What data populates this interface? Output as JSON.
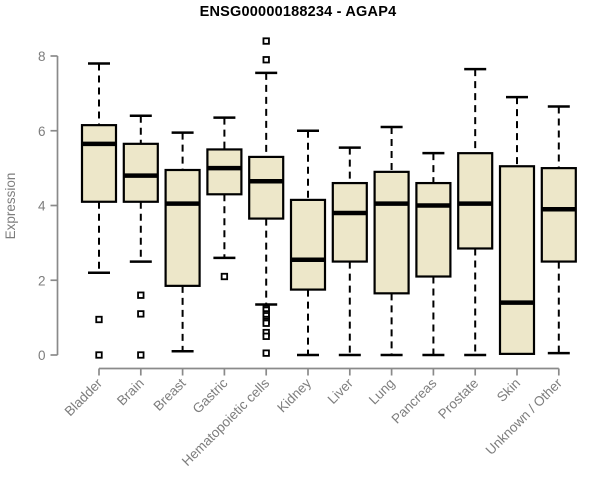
{
  "chart_data": {
    "type": "boxplot",
    "title": "ENSG00000188234 - AGAP4",
    "ylabel": "Expression",
    "xlabel": "",
    "ylim": [
      0,
      8
    ],
    "yticks": [
      0,
      2,
      4,
      6,
      8
    ],
    "grid": false,
    "legend": "none",
    "categories": [
      "Bladder",
      "Brain",
      "Breast",
      "Gastric",
      "Hematopoietic cells",
      "Kidney",
      "Liver",
      "Lung",
      "Pancreas",
      "Prostate",
      "Skin",
      "Unknown / Other"
    ],
    "boxes": [
      {
        "category": "Bladder",
        "whisker_low": 2.2,
        "q1": 4.1,
        "median": 5.65,
        "q3": 6.15,
        "whisker_high": 7.8,
        "outliers": [
          0.95,
          0.0
        ]
      },
      {
        "category": "Brain",
        "whisker_low": 2.5,
        "q1": 4.1,
        "median": 4.8,
        "q3": 5.65,
        "whisker_high": 6.4,
        "outliers": [
          1.6,
          1.1,
          0.0
        ]
      },
      {
        "category": "Breast",
        "whisker_low": 0.1,
        "q1": 1.85,
        "median": 4.05,
        "q3": 4.95,
        "whisker_high": 5.95,
        "outliers": []
      },
      {
        "category": "Gastric",
        "whisker_low": 2.6,
        "q1": 4.3,
        "median": 5.0,
        "q3": 5.5,
        "whisker_high": 6.35,
        "outliers": [
          2.1
        ]
      },
      {
        "category": "Hematopoietic cells",
        "whisker_low": 1.35,
        "q1": 3.65,
        "median": 4.65,
        "q3": 5.3,
        "whisker_high": 7.55,
        "outliers": [
          8.4,
          7.9,
          1.25,
          1.2,
          1.1,
          1.05,
          0.95,
          0.9,
          0.85,
          0.6,
          0.5,
          0.05
        ]
      },
      {
        "category": "Kidney",
        "whisker_low": 0.0,
        "q1": 1.75,
        "median": 2.55,
        "q3": 4.15,
        "whisker_high": 6.0,
        "outliers": []
      },
      {
        "category": "Liver",
        "whisker_low": 0.0,
        "q1": 2.5,
        "median": 3.8,
        "q3": 4.6,
        "whisker_high": 5.55,
        "outliers": []
      },
      {
        "category": "Lung",
        "whisker_low": 0.0,
        "q1": 1.65,
        "median": 4.05,
        "q3": 4.9,
        "whisker_high": 6.1,
        "outliers": []
      },
      {
        "category": "Pancreas",
        "whisker_low": 0.0,
        "q1": 2.1,
        "median": 4.0,
        "q3": 4.6,
        "whisker_high": 5.4,
        "outliers": []
      },
      {
        "category": "Prostate",
        "whisker_low": 0.0,
        "q1": 2.85,
        "median": 4.05,
        "q3": 5.4,
        "whisker_high": 7.65,
        "outliers": []
      },
      {
        "category": "Skin",
        "whisker_low": 0.03,
        "q1": 0.03,
        "median": 1.4,
        "q3": 5.05,
        "whisker_high": 6.9,
        "outliers": []
      },
      {
        "category": "Unknown / Other",
        "whisker_low": 0.05,
        "q1": 2.5,
        "median": 3.9,
        "q3": 5.0,
        "whisker_high": 6.65,
        "outliers": []
      }
    ],
    "colors": {
      "box_fill": "#EDE7C9",
      "box_border": "#000000",
      "median": "#000000",
      "whisker": "#000000",
      "outlier_fill": "#ffffff",
      "axis": "#8a8a8a",
      "tick_label": "#7d7d7d",
      "title": "#000000",
      "background": "#ffffff"
    }
  }
}
